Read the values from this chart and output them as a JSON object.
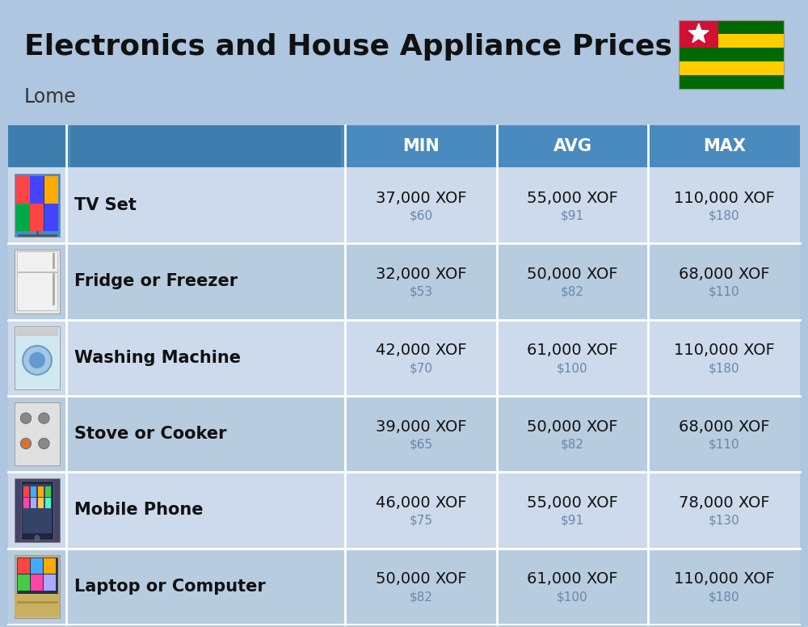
{
  "title": "Electronics and House Appliance Prices",
  "subtitle": "Lome",
  "background_color": "#aec6e0",
  "header_bg_color": "#4a8bbf",
  "header_text_color": "#ffffff",
  "separator_color": "#ffffff",
  "columns": [
    "MIN",
    "AVG",
    "MAX"
  ],
  "items": [
    {
      "name": "TV Set",
      "min_xof": "37,000 XOF",
      "min_usd": "$60",
      "avg_xof": "55,000 XOF",
      "avg_usd": "$91",
      "max_xof": "110,000 XOF",
      "max_usd": "$180"
    },
    {
      "name": "Fridge or Freezer",
      "min_xof": "32,000 XOF",
      "min_usd": "$53",
      "avg_xof": "50,000 XOF",
      "avg_usd": "$82",
      "max_xof": "68,000 XOF",
      "max_usd": "$110"
    },
    {
      "name": "Washing Machine",
      "min_xof": "42,000 XOF",
      "min_usd": "$70",
      "avg_xof": "61,000 XOF",
      "avg_usd": "$100",
      "max_xof": "110,000 XOF",
      "max_usd": "$180"
    },
    {
      "name": "Stove or Cooker",
      "min_xof": "39,000 XOF",
      "min_usd": "$65",
      "avg_xof": "50,000 XOF",
      "avg_usd": "$82",
      "max_xof": "68,000 XOF",
      "max_usd": "$110"
    },
    {
      "name": "Mobile Phone",
      "min_xof": "46,000 XOF",
      "min_usd": "$75",
      "avg_xof": "55,000 XOF",
      "avg_usd": "$91",
      "max_xof": "78,000 XOF",
      "max_usd": "$130"
    },
    {
      "name": "Laptop or Computer",
      "min_xof": "50,000 XOF",
      "min_usd": "$82",
      "avg_xof": "61,000 XOF",
      "avg_usd": "$100",
      "max_xof": "110,000 XOF",
      "max_usd": "$180"
    }
  ],
  "title_fontsize": 26,
  "subtitle_fontsize": 17,
  "header_fontsize": 15,
  "item_name_fontsize": 15,
  "value_fontsize": 14,
  "usd_fontsize": 11,
  "usd_color": "#6688aa",
  "item_name_color": "#111111",
  "value_color": "#111111",
  "row_colors": [
    "#cddaeb",
    "#b8ccdf"
  ],
  "flag_stripe_colors": [
    "#006a00",
    "#ffcd00",
    "#006a00",
    "#ffcd00",
    "#006a00"
  ],
  "flag_canton_color": "#d21034",
  "flag_star_color": "#ffffff"
}
